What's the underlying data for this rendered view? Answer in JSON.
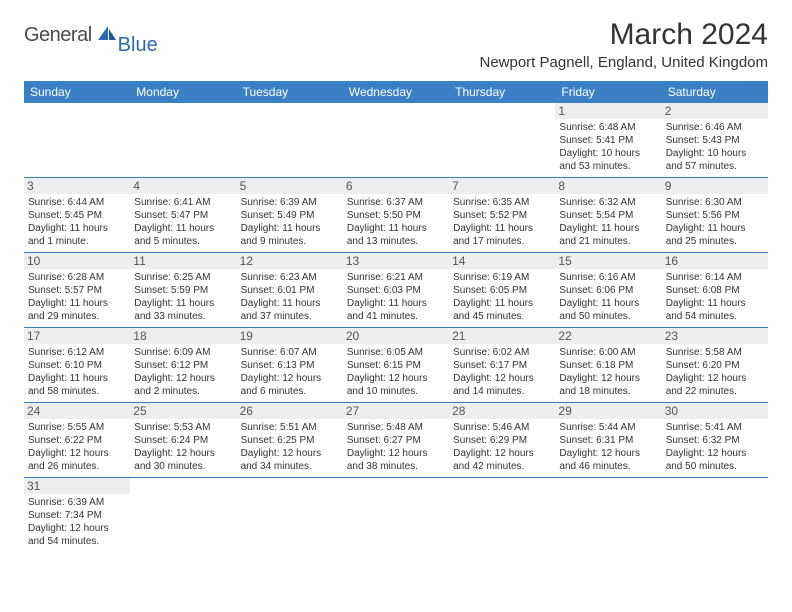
{
  "logo": {
    "text_gray": "General",
    "text_blue": "Blue"
  },
  "title": "March 2024",
  "location": "Newport Pagnell, England, United Kingdom",
  "colors": {
    "header_bg": "#3b7fc4",
    "header_text": "#ffffff",
    "daynum_bg": "#eceef0",
    "border": "#3b7fc4",
    "logo_gray": "#4a4a4a",
    "logo_blue": "#2a6bb0"
  },
  "weekdays": [
    "Sunday",
    "Monday",
    "Tuesday",
    "Wednesday",
    "Thursday",
    "Friday",
    "Saturday"
  ],
  "cells": [
    {
      "blank": true
    },
    {
      "blank": true
    },
    {
      "blank": true
    },
    {
      "blank": true
    },
    {
      "blank": true
    },
    {
      "day": "1",
      "sunrise": "Sunrise: 6:48 AM",
      "sunset": "Sunset: 5:41 PM",
      "daylight": "Daylight: 10 hours and 53 minutes."
    },
    {
      "day": "2",
      "sunrise": "Sunrise: 6:46 AM",
      "sunset": "Sunset: 5:43 PM",
      "daylight": "Daylight: 10 hours and 57 minutes."
    },
    {
      "day": "3",
      "sunrise": "Sunrise: 6:44 AM",
      "sunset": "Sunset: 5:45 PM",
      "daylight": "Daylight: 11 hours and 1 minute."
    },
    {
      "day": "4",
      "sunrise": "Sunrise: 6:41 AM",
      "sunset": "Sunset: 5:47 PM",
      "daylight": "Daylight: 11 hours and 5 minutes."
    },
    {
      "day": "5",
      "sunrise": "Sunrise: 6:39 AM",
      "sunset": "Sunset: 5:49 PM",
      "daylight": "Daylight: 11 hours and 9 minutes."
    },
    {
      "day": "6",
      "sunrise": "Sunrise: 6:37 AM",
      "sunset": "Sunset: 5:50 PM",
      "daylight": "Daylight: 11 hours and 13 minutes."
    },
    {
      "day": "7",
      "sunrise": "Sunrise: 6:35 AM",
      "sunset": "Sunset: 5:52 PM",
      "daylight": "Daylight: 11 hours and 17 minutes."
    },
    {
      "day": "8",
      "sunrise": "Sunrise: 6:32 AM",
      "sunset": "Sunset: 5:54 PM",
      "daylight": "Daylight: 11 hours and 21 minutes."
    },
    {
      "day": "9",
      "sunrise": "Sunrise: 6:30 AM",
      "sunset": "Sunset: 5:56 PM",
      "daylight": "Daylight: 11 hours and 25 minutes."
    },
    {
      "day": "10",
      "sunrise": "Sunrise: 6:28 AM",
      "sunset": "Sunset: 5:57 PM",
      "daylight": "Daylight: 11 hours and 29 minutes."
    },
    {
      "day": "11",
      "sunrise": "Sunrise: 6:25 AM",
      "sunset": "Sunset: 5:59 PM",
      "daylight": "Daylight: 11 hours and 33 minutes."
    },
    {
      "day": "12",
      "sunrise": "Sunrise: 6:23 AM",
      "sunset": "Sunset: 6:01 PM",
      "daylight": "Daylight: 11 hours and 37 minutes."
    },
    {
      "day": "13",
      "sunrise": "Sunrise: 6:21 AM",
      "sunset": "Sunset: 6:03 PM",
      "daylight": "Daylight: 11 hours and 41 minutes."
    },
    {
      "day": "14",
      "sunrise": "Sunrise: 6:19 AM",
      "sunset": "Sunset: 6:05 PM",
      "daylight": "Daylight: 11 hours and 45 minutes."
    },
    {
      "day": "15",
      "sunrise": "Sunrise: 6:16 AM",
      "sunset": "Sunset: 6:06 PM",
      "daylight": "Daylight: 11 hours and 50 minutes."
    },
    {
      "day": "16",
      "sunrise": "Sunrise: 6:14 AM",
      "sunset": "Sunset: 6:08 PM",
      "daylight": "Daylight: 11 hours and 54 minutes."
    },
    {
      "day": "17",
      "sunrise": "Sunrise: 6:12 AM",
      "sunset": "Sunset: 6:10 PM",
      "daylight": "Daylight: 11 hours and 58 minutes."
    },
    {
      "day": "18",
      "sunrise": "Sunrise: 6:09 AM",
      "sunset": "Sunset: 6:12 PM",
      "daylight": "Daylight: 12 hours and 2 minutes."
    },
    {
      "day": "19",
      "sunrise": "Sunrise: 6:07 AM",
      "sunset": "Sunset: 6:13 PM",
      "daylight": "Daylight: 12 hours and 6 minutes."
    },
    {
      "day": "20",
      "sunrise": "Sunrise: 6:05 AM",
      "sunset": "Sunset: 6:15 PM",
      "daylight": "Daylight: 12 hours and 10 minutes."
    },
    {
      "day": "21",
      "sunrise": "Sunrise: 6:02 AM",
      "sunset": "Sunset: 6:17 PM",
      "daylight": "Daylight: 12 hours and 14 minutes."
    },
    {
      "day": "22",
      "sunrise": "Sunrise: 6:00 AM",
      "sunset": "Sunset: 6:18 PM",
      "daylight": "Daylight: 12 hours and 18 minutes."
    },
    {
      "day": "23",
      "sunrise": "Sunrise: 5:58 AM",
      "sunset": "Sunset: 6:20 PM",
      "daylight": "Daylight: 12 hours and 22 minutes."
    },
    {
      "day": "24",
      "sunrise": "Sunrise: 5:55 AM",
      "sunset": "Sunset: 6:22 PM",
      "daylight": "Daylight: 12 hours and 26 minutes."
    },
    {
      "day": "25",
      "sunrise": "Sunrise: 5:53 AM",
      "sunset": "Sunset: 6:24 PM",
      "daylight": "Daylight: 12 hours and 30 minutes."
    },
    {
      "day": "26",
      "sunrise": "Sunrise: 5:51 AM",
      "sunset": "Sunset: 6:25 PM",
      "daylight": "Daylight: 12 hours and 34 minutes."
    },
    {
      "day": "27",
      "sunrise": "Sunrise: 5:48 AM",
      "sunset": "Sunset: 6:27 PM",
      "daylight": "Daylight: 12 hours and 38 minutes."
    },
    {
      "day": "28",
      "sunrise": "Sunrise: 5:46 AM",
      "sunset": "Sunset: 6:29 PM",
      "daylight": "Daylight: 12 hours and 42 minutes."
    },
    {
      "day": "29",
      "sunrise": "Sunrise: 5:44 AM",
      "sunset": "Sunset: 6:31 PM",
      "daylight": "Daylight: 12 hours and 46 minutes."
    },
    {
      "day": "30",
      "sunrise": "Sunrise: 5:41 AM",
      "sunset": "Sunset: 6:32 PM",
      "daylight": "Daylight: 12 hours and 50 minutes."
    },
    {
      "day": "31",
      "sunrise": "Sunrise: 6:39 AM",
      "sunset": "Sunset: 7:34 PM",
      "daylight": "Daylight: 12 hours and 54 minutes."
    },
    {
      "blank": true
    },
    {
      "blank": true
    },
    {
      "blank": true
    },
    {
      "blank": true
    },
    {
      "blank": true
    },
    {
      "blank": true
    }
  ]
}
